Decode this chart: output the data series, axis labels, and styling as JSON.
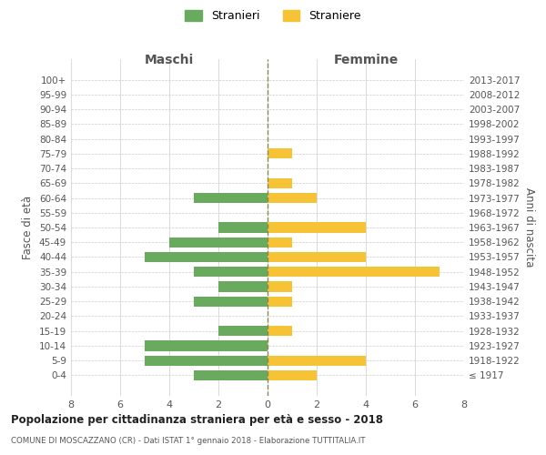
{
  "age_groups": [
    "100+",
    "95-99",
    "90-94",
    "85-89",
    "80-84",
    "75-79",
    "70-74",
    "65-69",
    "60-64",
    "55-59",
    "50-54",
    "45-49",
    "40-44",
    "35-39",
    "30-34",
    "25-29",
    "20-24",
    "15-19",
    "10-14",
    "5-9",
    "0-4"
  ],
  "birth_years": [
    "≤ 1917",
    "1918-1922",
    "1923-1927",
    "1928-1932",
    "1933-1937",
    "1938-1942",
    "1943-1947",
    "1948-1952",
    "1953-1957",
    "1958-1962",
    "1963-1967",
    "1968-1972",
    "1973-1977",
    "1978-1982",
    "1983-1987",
    "1988-1992",
    "1993-1997",
    "1998-2002",
    "2003-2007",
    "2008-2012",
    "2013-2017"
  ],
  "maschi": [
    0,
    0,
    0,
    0,
    0,
    0,
    0,
    0,
    3,
    0,
    2,
    4,
    5,
    3,
    2,
    3,
    0,
    2,
    5,
    5,
    3
  ],
  "femmine": [
    0,
    0,
    0,
    0,
    0,
    1,
    0,
    1,
    2,
    0,
    4,
    1,
    4,
    7,
    1,
    1,
    0,
    1,
    0,
    4,
    2
  ],
  "maschi_color": "#6aaa5e",
  "femmine_color": "#f5c335",
  "grid_color": "#cccccc",
  "dashed_line_color": "#888855",
  "title": "Popolazione per cittadinanza straniera per età e sesso - 2018",
  "subtitle": "COMUNE DI MOSCAZZANO (CR) - Dati ISTAT 1° gennaio 2018 - Elaborazione TUTTITALIA.IT",
  "xlabel_left": "Maschi",
  "xlabel_right": "Femmine",
  "ylabel_left": "Fasce di età",
  "ylabel_right": "Anni di nascita",
  "legend_maschi": "Stranieri",
  "legend_femmine": "Straniere",
  "xlim": 8
}
